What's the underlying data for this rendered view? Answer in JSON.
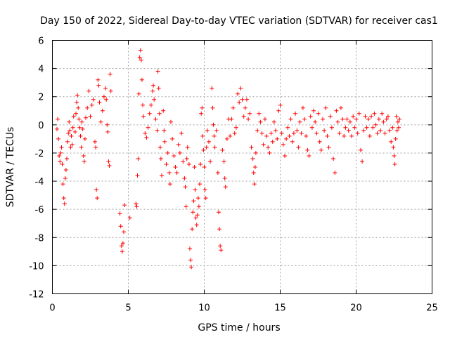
{
  "chart_data": {
    "type": "scatter",
    "title": "Day 150 of 2022, Sidereal Day-to-day VTEC variation (SDTVAR) for receiver cas1",
    "xlabel": "GPS time / hours",
    "ylabel": "SDTVAR / TECUs",
    "xlim": [
      0,
      25
    ],
    "ylim": [
      -12,
      6
    ],
    "xticks": [
      0,
      5,
      10,
      15,
      20,
      25
    ],
    "yticks": [
      -12,
      -10,
      -8,
      -6,
      -4,
      -2,
      0,
      2,
      4,
      6
    ],
    "xtick_labels": [
      "0",
      "5",
      "10",
      "15",
      "20",
      "25"
    ],
    "ytick_labels": [
      "-12",
      "-10",
      "-8",
      "-6",
      "-4",
      "-2",
      "0",
      "2",
      "4",
      "6"
    ],
    "grid": true,
    "marker": "+",
    "color": "#ff0000",
    "series": [
      {
        "name": "SDTVAR",
        "points": [
          [
            0.3,
            -0.3
          ],
          [
            0.35,
            0.4
          ],
          [
            0.4,
            -1.0
          ],
          [
            0.45,
            -2.2
          ],
          [
            0.5,
            -2.6
          ],
          [
            0.55,
            -2.0
          ],
          [
            0.6,
            -1.6
          ],
          [
            0.65,
            -2.8
          ],
          [
            0.7,
            -4.2
          ],
          [
            0.75,
            -5.2
          ],
          [
            0.8,
            -5.6
          ],
          [
            0.85,
            -3.8
          ],
          [
            0.9,
            -3.2
          ],
          [
            0.95,
            -2.4
          ],
          [
            1.0,
            -1.2
          ],
          [
            1.05,
            -0.6
          ],
          [
            1.1,
            0.2
          ],
          [
            1.15,
            -0.4
          ],
          [
            1.2,
            -1.6
          ],
          [
            1.25,
            -0.8
          ],
          [
            1.3,
            -1.4
          ],
          [
            1.35,
            -0.2
          ],
          [
            1.4,
            0.6
          ],
          [
            1.5,
            -0.5
          ],
          [
            1.55,
            0.8
          ],
          [
            1.6,
            1.6
          ],
          [
            1.65,
            2.1
          ],
          [
            1.7,
            1.2
          ],
          [
            1.75,
            0.4
          ],
          [
            1.8,
            -0.2
          ],
          [
            1.85,
            -0.8
          ],
          [
            1.9,
            -1.6
          ],
          [
            1.95,
            0.2
          ],
          [
            2.0,
            -0.3
          ],
          [
            2.05,
            -2.2
          ],
          [
            2.1,
            -2.6
          ],
          [
            2.15,
            -1.0
          ],
          [
            2.2,
            0.5
          ],
          [
            2.3,
            1.2
          ],
          [
            2.4,
            2.4
          ],
          [
            2.5,
            0.6
          ],
          [
            2.6,
            1.4
          ],
          [
            2.7,
            1.8
          ],
          [
            2.8,
            -1.2
          ],
          [
            2.85,
            -1.6
          ],
          [
            2.9,
            -4.6
          ],
          [
            2.95,
            -5.2
          ],
          [
            3.0,
            3.2
          ],
          [
            3.05,
            2.8
          ],
          [
            3.1,
            1.6
          ],
          [
            3.2,
            0.2
          ],
          [
            3.3,
            1.0
          ],
          [
            3.4,
            2.0
          ],
          [
            3.5,
            2.6
          ],
          [
            3.55,
            1.8
          ],
          [
            3.6,
            0.0
          ],
          [
            3.65,
            -0.5
          ],
          [
            3.7,
            -2.6
          ],
          [
            3.75,
            -2.9
          ],
          [
            3.8,
            3.6
          ],
          [
            3.85,
            2.4
          ],
          [
            4.45,
            -6.3
          ],
          [
            4.5,
            -7.2
          ],
          [
            4.55,
            -8.6
          ],
          [
            4.6,
            -9.0
          ],
          [
            4.65,
            -8.4
          ],
          [
            4.7,
            -7.6
          ],
          [
            4.75,
            -5.7
          ],
          [
            5.1,
            -6.6
          ],
          [
            5.5,
            -5.6
          ],
          [
            5.55,
            -5.8
          ],
          [
            5.6,
            -3.6
          ],
          [
            5.65,
            -2.4
          ],
          [
            5.7,
            2.2
          ],
          [
            5.75,
            4.8
          ],
          [
            5.8,
            5.3
          ],
          [
            5.85,
            4.6
          ],
          [
            5.9,
            3.2
          ],
          [
            5.95,
            1.4
          ],
          [
            6.0,
            0.6
          ],
          [
            6.1,
            -0.6
          ],
          [
            6.2,
            -0.9
          ],
          [
            6.3,
            -0.2
          ],
          [
            6.4,
            0.8
          ],
          [
            6.5,
            1.4
          ],
          [
            6.6,
            2.4
          ],
          [
            6.65,
            2.8
          ],
          [
            6.7,
            1.8
          ],
          [
            6.8,
            0.4
          ],
          [
            6.9,
            -0.4
          ],
          [
            6.95,
            3.8
          ],
          [
            7.0,
            2.6
          ],
          [
            7.05,
            0.8
          ],
          [
            7.1,
            -1.6
          ],
          [
            7.15,
            -2.4
          ],
          [
            7.2,
            -3.6
          ],
          [
            7.3,
            1.0
          ],
          [
            7.35,
            -0.4
          ],
          [
            7.4,
            -1.2
          ],
          [
            7.5,
            -2.8
          ],
          [
            7.6,
            -2.0
          ],
          [
            7.7,
            -3.4
          ],
          [
            7.75,
            -4.2
          ],
          [
            7.8,
            0.2
          ],
          [
            7.9,
            -1.0
          ],
          [
            8.0,
            -2.2
          ],
          [
            8.1,
            -3.0
          ],
          [
            8.2,
            -3.4
          ],
          [
            8.3,
            -1.4
          ],
          [
            8.4,
            -2.0
          ],
          [
            8.5,
            -0.6
          ],
          [
            8.6,
            -2.6
          ],
          [
            8.7,
            -3.8
          ],
          [
            8.75,
            -4.4
          ],
          [
            8.8,
            -5.8
          ],
          [
            8.85,
            -2.4
          ],
          [
            8.9,
            -1.6
          ],
          [
            9.0,
            -2.8
          ],
          [
            9.05,
            -8.8
          ],
          [
            9.1,
            -9.6
          ],
          [
            9.15,
            -10.1
          ],
          [
            9.2,
            -7.4
          ],
          [
            9.25,
            -6.2
          ],
          [
            9.3,
            -5.4
          ],
          [
            9.35,
            -3.0
          ],
          [
            9.4,
            -4.6
          ],
          [
            9.45,
            -6.6
          ],
          [
            9.5,
            -7.1
          ],
          [
            9.55,
            -6.4
          ],
          [
            9.6,
            -5.2
          ],
          [
            9.65,
            -5.8
          ],
          [
            9.7,
            -4.2
          ],
          [
            9.75,
            -2.8
          ],
          [
            9.8,
            0.8
          ],
          [
            9.85,
            1.2
          ],
          [
            9.9,
            -0.8
          ],
          [
            9.95,
            -1.8
          ],
          [
            10.0,
            -3.0
          ],
          [
            10.05,
            -4.6
          ],
          [
            10.1,
            -5.2
          ],
          [
            10.15,
            -1.6
          ],
          [
            10.2,
            -0.4
          ],
          [
            10.3,
            -1.2
          ],
          [
            10.4,
            -2.6
          ],
          [
            10.5,
            2.6
          ],
          [
            10.55,
            1.2
          ],
          [
            10.6,
            0.0
          ],
          [
            10.65,
            -0.8
          ],
          [
            10.7,
            -1.6
          ],
          [
            10.8,
            -0.4
          ],
          [
            10.9,
            -3.4
          ],
          [
            10.95,
            -6.2
          ],
          [
            11.0,
            -7.4
          ],
          [
            11.05,
            -8.6
          ],
          [
            11.1,
            -8.9
          ],
          [
            11.2,
            -1.8
          ],
          [
            11.3,
            -2.6
          ],
          [
            11.35,
            -3.8
          ],
          [
            11.4,
            -4.4
          ],
          [
            11.5,
            -1.0
          ],
          [
            11.6,
            0.4
          ],
          [
            11.7,
            -0.8
          ],
          [
            11.8,
            0.4
          ],
          [
            11.9,
            1.2
          ],
          [
            12.0,
            -0.6
          ],
          [
            12.1,
            -0.2
          ],
          [
            12.2,
            2.2
          ],
          [
            12.3,
            1.6
          ],
          [
            12.4,
            2.6
          ],
          [
            12.5,
            1.8
          ],
          [
            12.6,
            0.6
          ],
          [
            12.7,
            1.2
          ],
          [
            12.8,
            1.8
          ],
          [
            12.9,
            0.4
          ],
          [
            13.0,
            0.8
          ],
          [
            13.1,
            -1.6
          ],
          [
            13.2,
            -2.4
          ],
          [
            13.25,
            -3.4
          ],
          [
            13.3,
            -4.2
          ],
          [
            13.35,
            -3.0
          ],
          [
            13.4,
            -2.0
          ],
          [
            13.5,
            -0.4
          ],
          [
            13.6,
            0.8
          ],
          [
            13.7,
            0.2
          ],
          [
            13.8,
            -0.6
          ],
          [
            13.9,
            -1.4
          ],
          [
            14.0,
            0.4
          ],
          [
            14.1,
            -0.8
          ],
          [
            14.2,
            -1.6
          ],
          [
            14.3,
            -2.0
          ],
          [
            14.4,
            -0.6
          ],
          [
            14.5,
            -1.2
          ],
          [
            14.6,
            0.2
          ],
          [
            14.7,
            -0.4
          ],
          [
            14.8,
            -1.0
          ],
          [
            14.9,
            1.0
          ],
          [
            15.0,
            1.4
          ],
          [
            15.1,
            -0.6
          ],
          [
            15.2,
            -1.4
          ],
          [
            15.3,
            -2.2
          ],
          [
            15.4,
            -1.0
          ],
          [
            15.5,
            -0.2
          ],
          [
            15.6,
            -0.8
          ],
          [
            15.7,
            0.4
          ],
          [
            15.8,
            -1.2
          ],
          [
            15.9,
            -0.6
          ],
          [
            16.0,
            0.8
          ],
          [
            16.1,
            -0.4
          ],
          [
            16.2,
            -1.6
          ],
          [
            16.3,
            0.2
          ],
          [
            16.4,
            -0.6
          ],
          [
            16.5,
            1.2
          ],
          [
            16.6,
            0.4
          ],
          [
            16.7,
            -0.8
          ],
          [
            16.8,
            -1.8
          ],
          [
            16.9,
            -2.2
          ],
          [
            17.0,
            0.6
          ],
          [
            17.1,
            -0.2
          ],
          [
            17.2,
            1.0
          ],
          [
            17.3,
            0.2
          ],
          [
            17.4,
            -0.6
          ],
          [
            17.5,
            0.8
          ],
          [
            17.6,
            -1.2
          ],
          [
            17.7,
            -1.8
          ],
          [
            17.8,
            0.4
          ],
          [
            17.9,
            -0.4
          ],
          [
            18.0,
            1.2
          ],
          [
            18.1,
            -0.8
          ],
          [
            18.2,
            -1.6
          ],
          [
            18.3,
            0.6
          ],
          [
            18.4,
            -0.2
          ],
          [
            18.5,
            -2.4
          ],
          [
            18.6,
            -3.4
          ],
          [
            18.7,
            1.0
          ],
          [
            18.8,
            0.2
          ],
          [
            18.9,
            -0.6
          ],
          [
            19.0,
            1.2
          ],
          [
            19.1,
            0.4
          ],
          [
            19.2,
            -0.8
          ],
          [
            19.3,
            -0.2
          ],
          [
            19.4,
            0.4
          ],
          [
            19.5,
            -0.4
          ],
          [
            19.6,
            0.2
          ],
          [
            19.7,
            -0.8
          ],
          [
            19.8,
            0.6
          ],
          [
            19.9,
            -0.2
          ],
          [
            20.0,
            0.4
          ],
          [
            20.1,
            -0.6
          ],
          [
            20.2,
            0.8
          ],
          [
            20.3,
            -1.8
          ],
          [
            20.4,
            -2.6
          ],
          [
            20.5,
            -0.4
          ],
          [
            20.6,
            0.6
          ],
          [
            20.7,
            -0.2
          ],
          [
            20.8,
            0.4
          ],
          [
            20.9,
            -0.8
          ],
          [
            21.0,
            0.6
          ],
          [
            21.1,
            -0.2
          ],
          [
            21.2,
            0.8
          ],
          [
            21.3,
            0.0
          ],
          [
            21.4,
            -0.6
          ],
          [
            21.5,
            0.4
          ],
          [
            21.6,
            -0.4
          ],
          [
            21.7,
            0.8
          ],
          [
            21.8,
            0.2
          ],
          [
            21.9,
            -0.6
          ],
          [
            22.0,
            0.4
          ],
          [
            22.1,
            0.6
          ],
          [
            22.2,
            -0.4
          ],
          [
            22.3,
            -1.2
          ],
          [
            22.4,
            -0.2
          ],
          [
            22.45,
            -1.6
          ],
          [
            22.5,
            -2.2
          ],
          [
            22.55,
            -2.8
          ],
          [
            22.6,
            -1.0
          ],
          [
            22.65,
            0.6
          ],
          [
            22.7,
            -0.4
          ],
          [
            22.75,
            0.2
          ],
          [
            22.8,
            -0.2
          ],
          [
            22.85,
            0.4
          ]
        ]
      }
    ]
  }
}
